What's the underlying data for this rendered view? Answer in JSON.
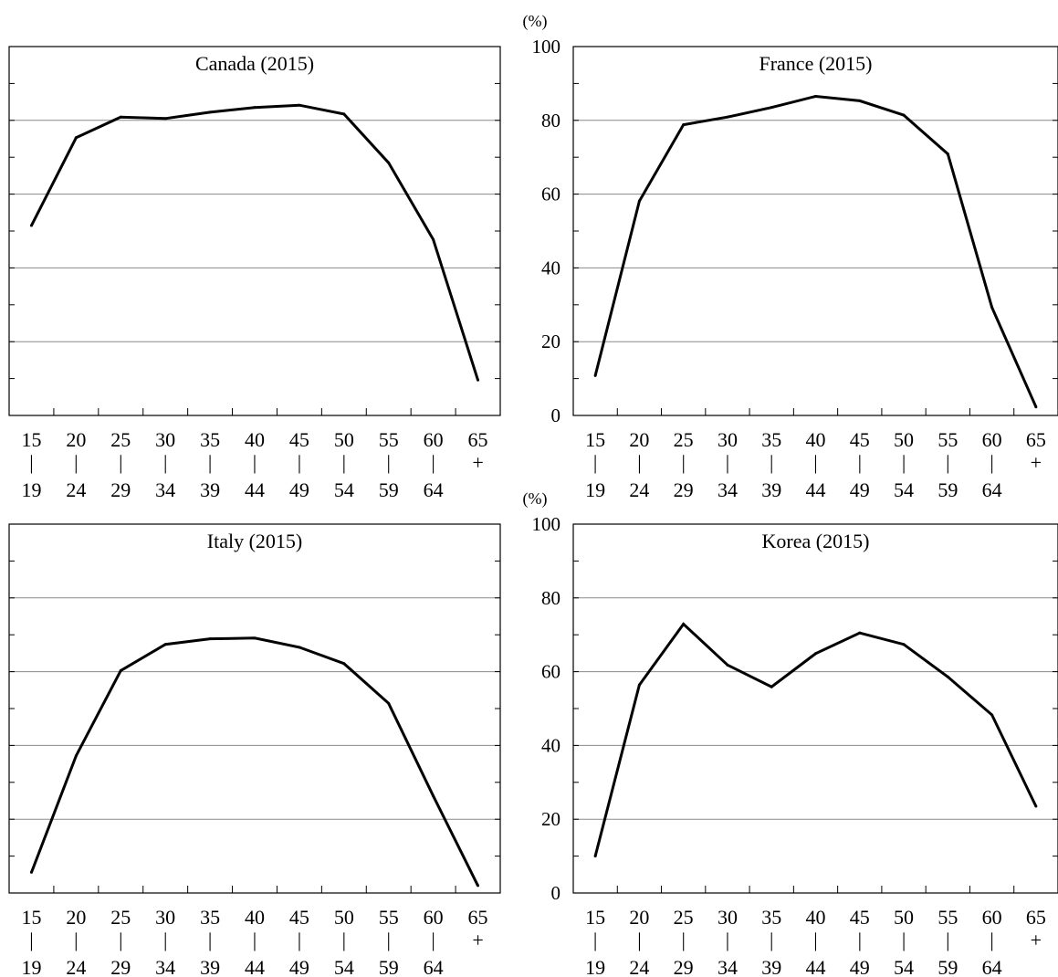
{
  "chart_data": [
    {
      "type": "line",
      "title": "Canada (2015)",
      "ylim": [
        0,
        100
      ],
      "y_ticks": [
        0,
        20,
        40,
        60,
        80,
        100
      ],
      "y_ticks_shown": false,
      "y_unit": "",
      "grid": "horizontal",
      "categories": [
        {
          "top": "15",
          "mid": "|",
          "bottom": "19"
        },
        {
          "top": "20",
          "mid": "|",
          "bottom": "24"
        },
        {
          "top": "25",
          "mid": "|",
          "bottom": "29"
        },
        {
          "top": "30",
          "mid": "|",
          "bottom": "34"
        },
        {
          "top": "35",
          "mid": "|",
          "bottom": "39"
        },
        {
          "top": "40",
          "mid": "|",
          "bottom": "44"
        },
        {
          "top": "45",
          "mid": "|",
          "bottom": "49"
        },
        {
          "top": "50",
          "mid": "|",
          "bottom": "54"
        },
        {
          "top": "55",
          "mid": "|",
          "bottom": "59"
        },
        {
          "top": "60",
          "mid": "|",
          "bottom": "64"
        },
        {
          "top": "65",
          "mid": "+",
          "bottom": ""
        }
      ],
      "values": [
        51.5,
        75.3,
        80.9,
        80.5,
        82.2,
        83.5,
        84.1,
        81.7,
        68.5,
        47.7,
        9.6
      ]
    },
    {
      "type": "line",
      "title": "France (2015)",
      "ylim": [
        0,
        100
      ],
      "y_ticks": [
        0,
        20,
        40,
        60,
        80,
        100
      ],
      "y_ticks_shown": true,
      "y_unit": "(%)",
      "grid": "horizontal",
      "categories": [
        {
          "top": "15",
          "mid": "|",
          "bottom": "19"
        },
        {
          "top": "20",
          "mid": "|",
          "bottom": "24"
        },
        {
          "top": "25",
          "mid": "|",
          "bottom": "29"
        },
        {
          "top": "30",
          "mid": "|",
          "bottom": "34"
        },
        {
          "top": "35",
          "mid": "|",
          "bottom": "39"
        },
        {
          "top": "40",
          "mid": "|",
          "bottom": "44"
        },
        {
          "top": "45",
          "mid": "|",
          "bottom": "49"
        },
        {
          "top": "50",
          "mid": "|",
          "bottom": "54"
        },
        {
          "top": "55",
          "mid": "|",
          "bottom": "59"
        },
        {
          "top": "60",
          "mid": "|",
          "bottom": "64"
        },
        {
          "top": "65",
          "mid": "+",
          "bottom": ""
        }
      ],
      "values": [
        10.8,
        58.1,
        78.8,
        80.9,
        83.5,
        86.5,
        85.3,
        81.4,
        70.9,
        29.3,
        2.3
      ]
    },
    {
      "type": "line",
      "title": "Italy (2015)",
      "ylim": [
        0,
        100
      ],
      "y_ticks": [
        0,
        20,
        40,
        60,
        80,
        100
      ],
      "y_ticks_shown": false,
      "y_unit": "",
      "grid": "horizontal",
      "categories": [
        {
          "top": "15",
          "mid": "|",
          "bottom": "19"
        },
        {
          "top": "20",
          "mid": "|",
          "bottom": "24"
        },
        {
          "top": "25",
          "mid": "|",
          "bottom": "29"
        },
        {
          "top": "30",
          "mid": "|",
          "bottom": "34"
        },
        {
          "top": "35",
          "mid": "|",
          "bottom": "39"
        },
        {
          "top": "40",
          "mid": "|",
          "bottom": "44"
        },
        {
          "top": "45",
          "mid": "|",
          "bottom": "49"
        },
        {
          "top": "50",
          "mid": "|",
          "bottom": "54"
        },
        {
          "top": "55",
          "mid": "|",
          "bottom": "59"
        },
        {
          "top": "60",
          "mid": "|",
          "bottom": "64"
        },
        {
          "top": "65",
          "mid": "+",
          "bottom": ""
        }
      ],
      "values": [
        5.6,
        37.2,
        60.3,
        67.4,
        68.9,
        69.1,
        66.6,
        62.2,
        51.4,
        26.3,
        2.0
      ]
    },
    {
      "type": "line",
      "title": "Korea (2015)",
      "ylim": [
        0,
        100
      ],
      "y_ticks": [
        0,
        20,
        40,
        60,
        80,
        100
      ],
      "y_ticks_shown": true,
      "y_unit": "(%)",
      "grid": "horizontal",
      "categories": [
        {
          "top": "15",
          "mid": "|",
          "bottom": "19"
        },
        {
          "top": "20",
          "mid": "|",
          "bottom": "24"
        },
        {
          "top": "25",
          "mid": "|",
          "bottom": "29"
        },
        {
          "top": "30",
          "mid": "|",
          "bottom": "34"
        },
        {
          "top": "35",
          "mid": "|",
          "bottom": "39"
        },
        {
          "top": "40",
          "mid": "|",
          "bottom": "44"
        },
        {
          "top": "45",
          "mid": "|",
          "bottom": "49"
        },
        {
          "top": "50",
          "mid": "|",
          "bottom": "54"
        },
        {
          "top": "55",
          "mid": "|",
          "bottom": "59"
        },
        {
          "top": "60",
          "mid": "|",
          "bottom": "64"
        },
        {
          "top": "65",
          "mid": "+",
          "bottom": ""
        }
      ],
      "values": [
        10.0,
        56.4,
        72.9,
        61.8,
        55.9,
        64.9,
        70.5,
        67.4,
        58.6,
        48.3,
        23.5
      ]
    }
  ]
}
